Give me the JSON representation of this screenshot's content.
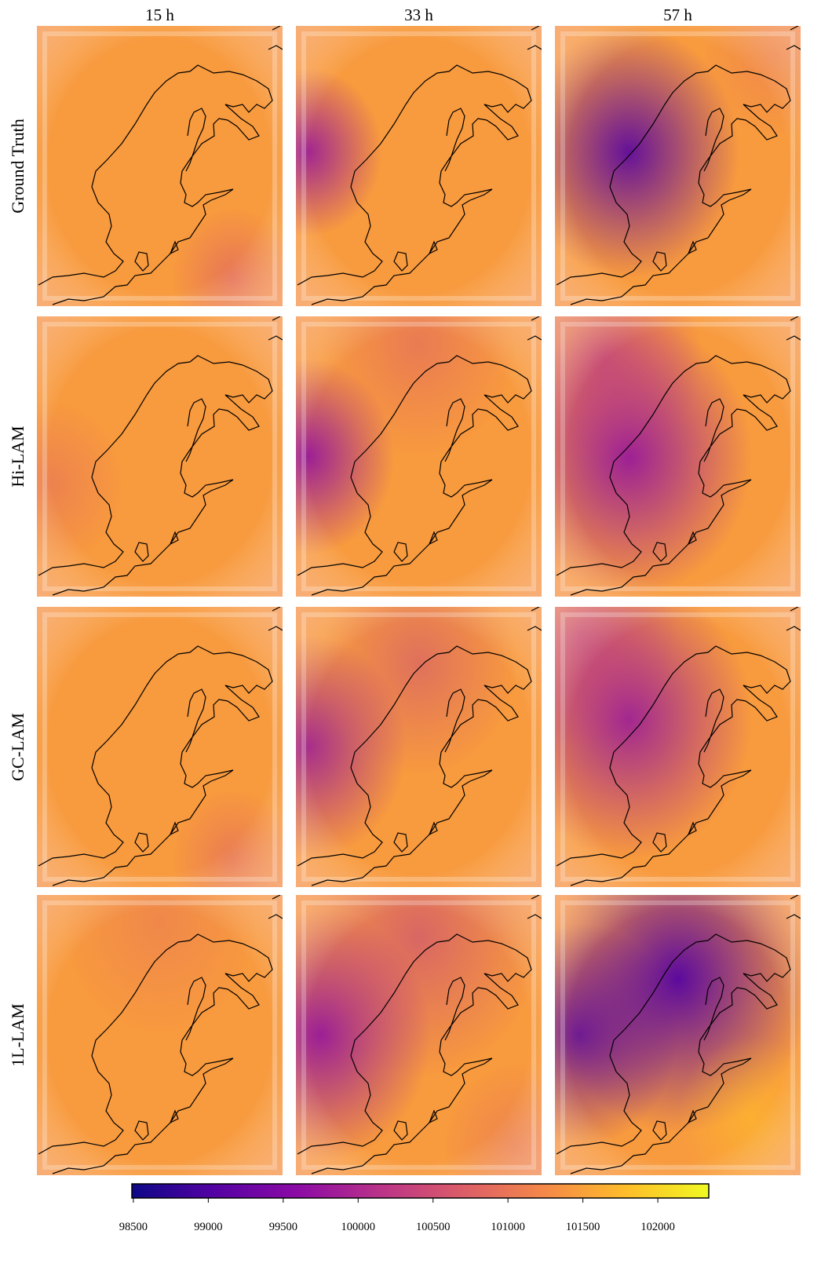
{
  "columns": [
    "15 h",
    "33 h",
    "57 h"
  ],
  "rows": [
    "Ground Truth",
    "Hi-LAM",
    "GC-LAM",
    "1L-LAM"
  ],
  "colorbar": {
    "range": [
      98490,
      102340
    ],
    "ticks": [
      98500,
      99000,
      99500,
      100000,
      100500,
      101000,
      101500,
      102000
    ],
    "colors": [
      "#0d0887",
      "#5402a3",
      "#8b0aa5",
      "#b93289",
      "#db5c68",
      "#f48849",
      "#febd2a",
      "#f0f921"
    ]
  }
}
